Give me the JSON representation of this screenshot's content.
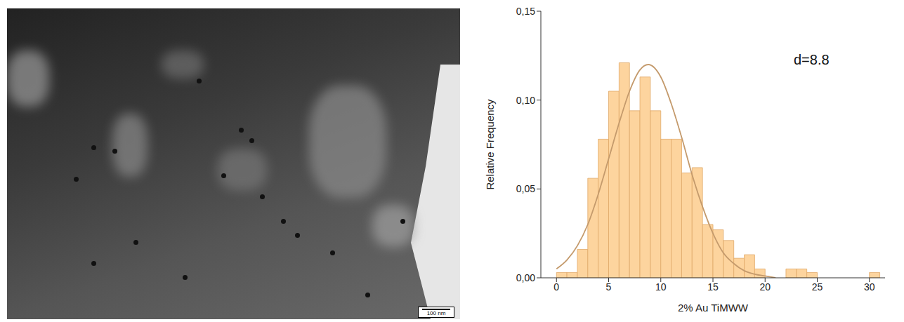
{
  "image": {
    "scale_bar": "100 nm"
  },
  "chart_data": {
    "type": "histogram",
    "xlabel": "2% Au TiMWW",
    "ylabel": "Relative Frequency",
    "annotation": "d=8.8",
    "bins": [
      0,
      1,
      2,
      3,
      4,
      5,
      6,
      7,
      8,
      9,
      10,
      11,
      12,
      13,
      14,
      15,
      16,
      17,
      18,
      19,
      20,
      21,
      22,
      23,
      24,
      25,
      26,
      27,
      28,
      29,
      30,
      31
    ],
    "values": [
      0.003,
      0.003,
      0.016,
      0.056,
      0.078,
      0.105,
      0.121,
      0.094,
      0.113,
      0.094,
      0.078,
      0.078,
      0.059,
      0.062,
      0.03,
      0.027,
      0.021,
      0.011,
      0.013,
      0.005,
      0,
      0,
      0.005,
      0.005,
      0.003,
      0,
      0,
      0,
      0,
      0,
      0.003
    ],
    "color": "#fdd49e",
    "fit": {
      "x": [
        0,
        1,
        2,
        3,
        4,
        5,
        6,
        7,
        8,
        8.8,
        10,
        11,
        12,
        13,
        14,
        15,
        16,
        17,
        18,
        19,
        20,
        21
      ],
      "values": [
        0.005,
        0.01,
        0.018,
        0.03,
        0.047,
        0.067,
        0.087,
        0.105,
        0.117,
        0.12,
        0.113,
        0.098,
        0.079,
        0.058,
        0.04,
        0.025,
        0.014,
        0.008,
        0.004,
        0.002,
        0.001,
        0
      ],
      "color": "#c49a6c"
    },
    "xlim": [
      -1.5,
      31.5
    ],
    "xticks": [
      0,
      5,
      10,
      15,
      20,
      25,
      30
    ],
    "ylim": [
      0,
      0.15
    ],
    "yticks": [
      {
        "value": 0,
        "label": "0,00"
      },
      {
        "value": 0.05,
        "label": "0,05"
      },
      {
        "value": 0.1,
        "label": "0,10"
      },
      {
        "value": 0.15,
        "label": "0,15"
      }
    ]
  }
}
